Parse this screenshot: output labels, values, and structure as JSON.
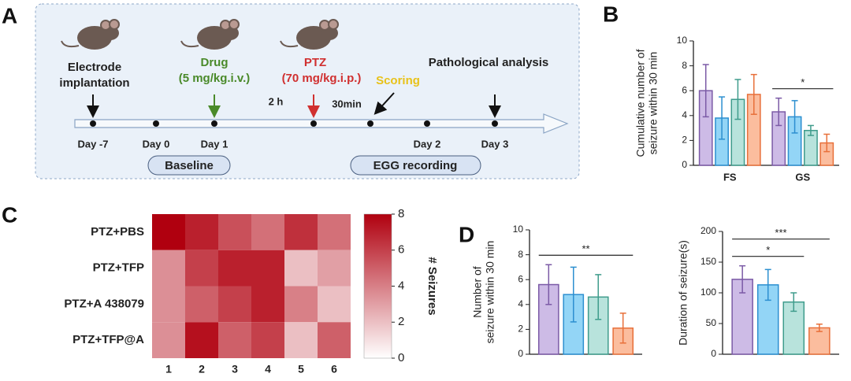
{
  "panel_labels": [
    "A",
    "B",
    "C",
    "D"
  ],
  "panel_a": {
    "electrode": [
      "Electrode",
      "implantation"
    ],
    "drug": "Drug",
    "drug_dose": "(5 mg/kg.i.v.)",
    "ptz": "PTZ",
    "ptz_dose": "(70 mg/kg.i.p.)",
    "scoring": "Scoring",
    "pathology": "Pathological analysis",
    "interval_1": "2 h",
    "interval_2": "30min",
    "days": [
      "Day -7",
      "Day 0",
      "Day 1",
      "Day 2",
      "Day 3"
    ],
    "baseline": "Baseline",
    "recording": "EGG recording"
  },
  "chart_data": [
    {
      "type": "bar",
      "ylabel": [
        "Cumulative number of",
        "seizure within 30 min"
      ],
      "categories": [
        "FS",
        "GS"
      ],
      "ylim": [
        0,
        10
      ],
      "yticks": [
        0,
        2,
        4,
        6,
        8,
        10
      ],
      "series": [
        {
          "color": "#cdbbe6",
          "edge_color": "#7b5aa6",
          "values": [
            6.0,
            4.3
          ],
          "errors": [
            2.1,
            1.1
          ]
        },
        {
          "color": "#93d5f6",
          "edge_color": "#2c8fd0",
          "values": [
            3.8,
            3.9
          ],
          "errors": [
            1.7,
            1.3
          ]
        },
        {
          "color": "#b8e3dc",
          "edge_color": "#3f9c8c",
          "values": [
            5.3,
            2.8
          ],
          "errors": [
            1.6,
            0.4
          ]
        },
        {
          "color": "#fbbd9e",
          "edge_color": "#e8703a",
          "values": [
            5.7,
            1.8
          ],
          "errors": [
            1.6,
            0.7
          ]
        }
      ],
      "comparisons": [
        {
          "label": "*",
          "group": 1,
          "from": 0,
          "to": 3
        }
      ]
    },
    {
      "type": "heatmap",
      "rows": [
        "PTZ+PBS",
        "PTZ+TFP",
        "PTZ+A 438079",
        "PTZ+TFP@A"
      ],
      "columns": [
        1,
        2,
        3,
        4,
        5,
        6
      ],
      "values": [
        [
          8,
          7,
          5.5,
          4.5,
          6.5,
          4.5
        ],
        [
          3.5,
          6,
          7,
          7,
          2,
          3
        ],
        [
          3.5,
          5,
          6,
          7,
          4,
          2
        ],
        [
          3.5,
          7.5,
          5,
          6,
          2,
          5
        ]
      ],
      "zlim": [
        0,
        8
      ],
      "zticks": [
        0,
        2,
        4,
        6,
        8
      ],
      "colors": [
        "#ffffff",
        "#b0000f"
      ],
      "colorbar_label": "# Seizures"
    },
    {
      "type": "bar",
      "ylabel": [
        "Number of",
        "seizure within 30 min"
      ],
      "categories": [
        null
      ],
      "ylim": [
        0,
        10
      ],
      "yticks": [
        0,
        2,
        4,
        6,
        8,
        10
      ],
      "series": [
        {
          "color": "#cdbbe6",
          "edge_color": "#7b5aa6",
          "values": [
            5.6
          ],
          "errors": [
            1.6
          ]
        },
        {
          "color": "#93d5f6",
          "edge_color": "#2c8fd0",
          "values": [
            4.8
          ],
          "errors": [
            2.2
          ]
        },
        {
          "color": "#b8e3dc",
          "edge_color": "#3f9c8c",
          "values": [
            4.6
          ],
          "errors": [
            1.8
          ]
        },
        {
          "color": "#fbbd9e",
          "edge_color": "#e8703a",
          "values": [
            2.1
          ],
          "errors": [
            1.2
          ]
        }
      ],
      "comparisons": [
        {
          "label": "**",
          "group": 0,
          "from": 0,
          "to": 3
        }
      ]
    },
    {
      "type": "bar",
      "ylabel": [
        "Duration of seizure(s)"
      ],
      "categories": [
        null
      ],
      "ylim": [
        0,
        200
      ],
      "yticks": [
        0,
        50,
        100,
        150,
        200
      ],
      "series": [
        {
          "color": "#cdbbe6",
          "edge_color": "#7b5aa6",
          "values": [
            122
          ],
          "errors": [
            22
          ]
        },
        {
          "color": "#93d5f6",
          "edge_color": "#2c8fd0",
          "values": [
            113
          ],
          "errors": [
            25
          ]
        },
        {
          "color": "#b8e3dc",
          "edge_color": "#3f9c8c",
          "values": [
            85
          ],
          "errors": [
            15
          ]
        },
        {
          "color": "#fbbd9e",
          "edge_color": "#e8703a",
          "values": [
            43
          ],
          "errors": [
            6
          ]
        }
      ],
      "comparisons": [
        {
          "label": "*",
          "group": 0,
          "from": 0,
          "to": 2
        },
        {
          "label": "***",
          "group": 0,
          "from": 0,
          "to": 3
        }
      ]
    }
  ]
}
